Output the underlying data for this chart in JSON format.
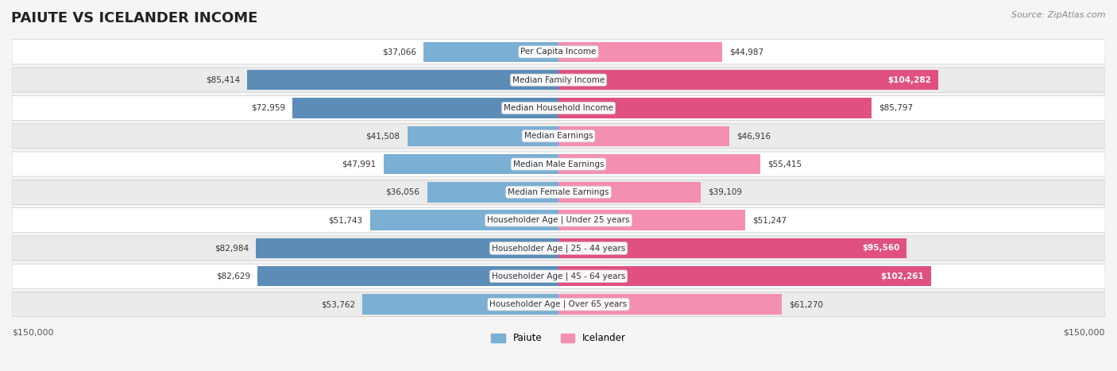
{
  "title": "PAIUTE VS ICELANDER INCOME",
  "source": "Source: ZipAtlas.com",
  "categories": [
    "Per Capita Income",
    "Median Family Income",
    "Median Household Income",
    "Median Earnings",
    "Median Male Earnings",
    "Median Female Earnings",
    "Householder Age | Under 25 years",
    "Householder Age | 25 - 44 years",
    "Householder Age | 45 - 64 years",
    "Householder Age | Over 65 years"
  ],
  "paiute": [
    37066,
    85414,
    72959,
    41508,
    47991,
    36056,
    51743,
    82984,
    82629,
    53762
  ],
  "icelander": [
    44987,
    104282,
    85797,
    46916,
    55415,
    39109,
    51247,
    95560,
    102261,
    61270
  ],
  "paiute_color": "#7bafd4",
  "icelander_color": "#f48fb1",
  "paiute_color_dark": "#5b8db8",
  "icelander_color_dark": "#e05080",
  "max_value": 150000,
  "legend_paiute": "Paiute",
  "legend_icelander": "Icelander",
  "bg_color": "#f5f5f5",
  "row_bg": "#ffffff",
  "row_alt_bg": "#f0f0f0"
}
